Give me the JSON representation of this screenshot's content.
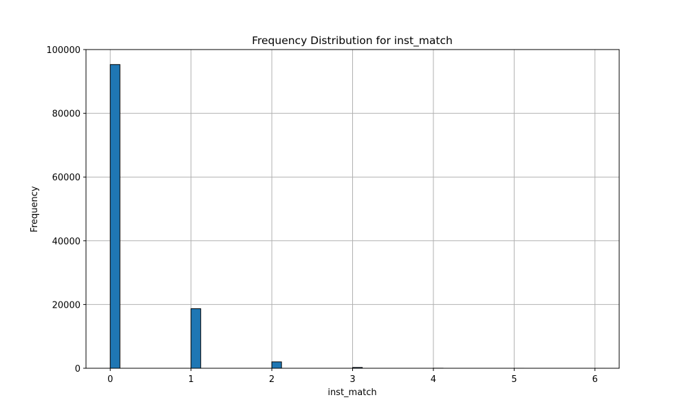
{
  "chart_data": {
    "type": "bar",
    "title": "Frequency Distribution for inst_match",
    "xlabel": "inst_match",
    "ylabel": "Frequency",
    "xlim": [
      -0.3,
      6.3
    ],
    "ylim": [
      0,
      100000
    ],
    "x_ticks": [
      0,
      1,
      2,
      3,
      4,
      5,
      6
    ],
    "y_ticks": [
      0,
      20000,
      40000,
      60000,
      80000,
      100000
    ],
    "grid": true,
    "bin_width": 0.12,
    "bins": [
      {
        "x": 0,
        "value": 95300
      },
      {
        "x": 1,
        "value": 18700
      },
      {
        "x": 2,
        "value": 2000
      },
      {
        "x": 3,
        "value": 250
      },
      {
        "x": 4,
        "value": 25
      },
      {
        "x": 5,
        "value": 5
      },
      {
        "x": 6,
        "value": 2
      }
    ],
    "colors": {
      "bar_fill": "#1f77b4",
      "bar_edge": "#000000",
      "grid": "#b0b0b0"
    }
  }
}
